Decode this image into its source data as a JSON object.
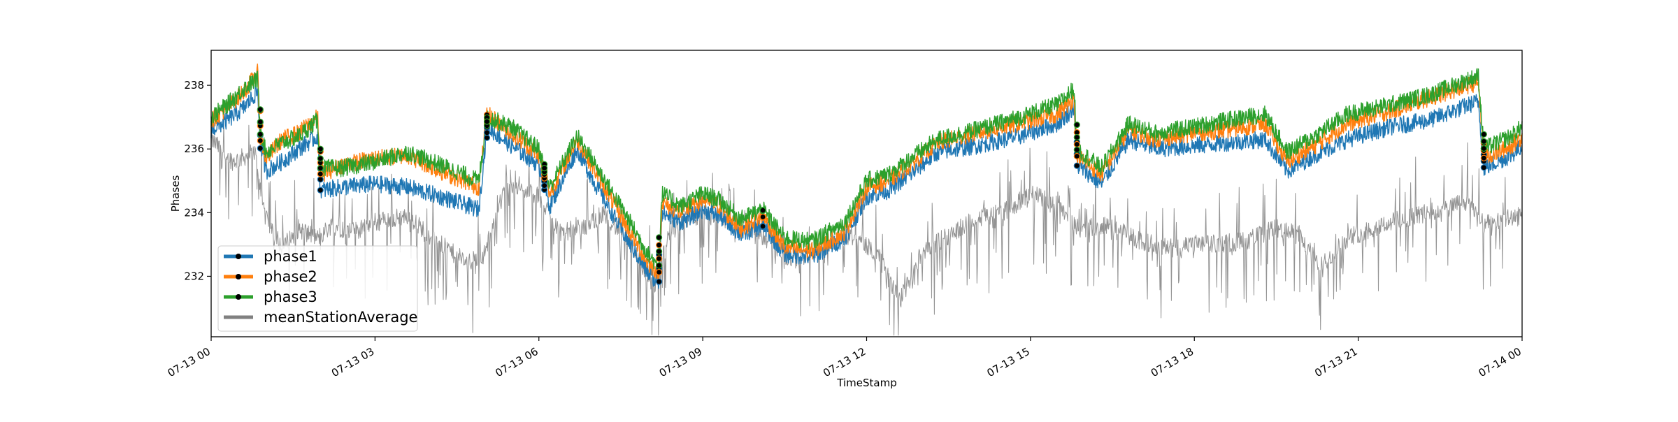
{
  "chart_data": {
    "type": "line",
    "title": "",
    "xlabel": "TimeStamp",
    "ylabel": "Phases",
    "x_range_hours": [
      0,
      24
    ],
    "ylim": [
      230.1,
      239.1
    ],
    "grid": false,
    "legend_position": "lower-left",
    "x_ticks": [
      {
        "hour": 0,
        "label": "07-13 00"
      },
      {
        "hour": 3,
        "label": "07-13 03"
      },
      {
        "hour": 6,
        "label": "07-13 06"
      },
      {
        "hour": 9,
        "label": "07-13 09"
      },
      {
        "hour": 12,
        "label": "07-13 12"
      },
      {
        "hour": 15,
        "label": "07-13 15"
      },
      {
        "hour": 18,
        "label": "07-13 18"
      },
      {
        "hour": 21,
        "label": "07-13 21"
      },
      {
        "hour": 24,
        "label": "07-14 00"
      }
    ],
    "y_ticks": [
      {
        "value": 232,
        "label": "232"
      },
      {
        "value": 234,
        "label": "234"
      },
      {
        "value": 236,
        "label": "236"
      },
      {
        "value": 238,
        "label": "238"
      }
    ],
    "series": [
      {
        "name": "phase1",
        "color": "#1f77b4",
        "marker": "dot",
        "points": [
          [
            0,
            236.6
          ],
          [
            0.3,
            236.9
          ],
          [
            0.6,
            237.3
          ],
          [
            0.85,
            237.8
          ],
          [
            0.9,
            236.2
          ],
          [
            1.0,
            235.3
          ],
          [
            1.3,
            235.6
          ],
          [
            1.6,
            236.0
          ],
          [
            1.95,
            236.4
          ],
          [
            2.0,
            234.7
          ],
          [
            2.4,
            234.8
          ],
          [
            3.0,
            234.9
          ],
          [
            3.6,
            234.8
          ],
          [
            4.2,
            234.5
          ],
          [
            4.9,
            234.1
          ],
          [
            5.05,
            236.7
          ],
          [
            5.5,
            236.1
          ],
          [
            6.0,
            235.5
          ],
          [
            6.2,
            234.2
          ],
          [
            6.7,
            236.0
          ],
          [
            7.0,
            235.0
          ],
          [
            7.6,
            233.2
          ],
          [
            8.0,
            232.1
          ],
          [
            8.2,
            231.8
          ],
          [
            8.25,
            234.0
          ],
          [
            8.6,
            233.7
          ],
          [
            9.0,
            234.1
          ],
          [
            9.3,
            233.9
          ],
          [
            9.7,
            233.3
          ],
          [
            10.1,
            233.6
          ],
          [
            10.5,
            232.7
          ],
          [
            11.0,
            232.6
          ],
          [
            11.6,
            233.2
          ],
          [
            12.0,
            234.5
          ],
          [
            12.4,
            234.7
          ],
          [
            12.8,
            235.2
          ],
          [
            13.3,
            235.9
          ],
          [
            14.0,
            236.1
          ],
          [
            14.8,
            236.4
          ],
          [
            15.5,
            236.8
          ],
          [
            15.8,
            237.3
          ],
          [
            15.85,
            235.5
          ],
          [
            16.3,
            234.9
          ],
          [
            16.8,
            236.3
          ],
          [
            17.3,
            236.0
          ],
          [
            18.0,
            236.1
          ],
          [
            18.6,
            236.2
          ],
          [
            19.3,
            236.3
          ],
          [
            19.7,
            235.3
          ],
          [
            20.2,
            235.8
          ],
          [
            20.8,
            236.3
          ],
          [
            21.6,
            236.7
          ],
          [
            22.3,
            236.9
          ],
          [
            23.2,
            237.5
          ],
          [
            23.3,
            235.4
          ],
          [
            23.8,
            235.8
          ],
          [
            24.0,
            236.1
          ]
        ]
      },
      {
        "name": "phase2",
        "color": "#ff7f0e",
        "marker": "dot",
        "points": [
          [
            0,
            236.9
          ],
          [
            0.3,
            237.3
          ],
          [
            0.6,
            237.8
          ],
          [
            0.85,
            238.4
          ],
          [
            0.9,
            236.4
          ],
          [
            1.0,
            235.7
          ],
          [
            1.3,
            236.3
          ],
          [
            1.6,
            236.5
          ],
          [
            1.95,
            237.0
          ],
          [
            2.0,
            235.2
          ],
          [
            2.4,
            235.5
          ],
          [
            3.0,
            235.7
          ],
          [
            3.6,
            235.8
          ],
          [
            4.2,
            235.3
          ],
          [
            4.9,
            234.8
          ],
          [
            5.05,
            237.1
          ],
          [
            5.5,
            236.5
          ],
          [
            6.0,
            235.8
          ],
          [
            6.2,
            234.6
          ],
          [
            6.7,
            236.3
          ],
          [
            7.0,
            235.4
          ],
          [
            7.6,
            233.6
          ],
          [
            8.0,
            232.4
          ],
          [
            8.2,
            232.1
          ],
          [
            8.25,
            234.3
          ],
          [
            8.6,
            234.0
          ],
          [
            9.0,
            234.4
          ],
          [
            9.3,
            234.2
          ],
          [
            9.7,
            233.5
          ],
          [
            10.1,
            233.9
          ],
          [
            10.5,
            232.9
          ],
          [
            11.0,
            232.8
          ],
          [
            11.6,
            233.4
          ],
          [
            12.0,
            234.8
          ],
          [
            12.4,
            235.0
          ],
          [
            12.8,
            235.5
          ],
          [
            13.3,
            236.2
          ],
          [
            14.0,
            236.5
          ],
          [
            14.8,
            236.8
          ],
          [
            15.5,
            237.1
          ],
          [
            15.8,
            237.6
          ],
          [
            15.85,
            235.8
          ],
          [
            16.3,
            235.2
          ],
          [
            16.8,
            236.6
          ],
          [
            17.3,
            236.3
          ],
          [
            18.0,
            236.5
          ],
          [
            18.6,
            236.6
          ],
          [
            19.3,
            236.8
          ],
          [
            19.7,
            235.6
          ],
          [
            20.2,
            236.1
          ],
          [
            20.8,
            236.8
          ],
          [
            21.6,
            237.2
          ],
          [
            22.3,
            237.6
          ],
          [
            23.2,
            238.1
          ],
          [
            23.3,
            235.7
          ],
          [
            23.8,
            236.1
          ],
          [
            24.0,
            236.4
          ]
        ]
      },
      {
        "name": "phase3",
        "color": "#2ca02c",
        "marker": "dot",
        "points": [
          [
            0,
            237.0
          ],
          [
            0.3,
            237.4
          ],
          [
            0.6,
            237.9
          ],
          [
            0.85,
            238.2
          ],
          [
            0.9,
            236.6
          ],
          [
            1.0,
            235.9
          ],
          [
            1.3,
            236.2
          ],
          [
            1.6,
            236.4
          ],
          [
            1.95,
            236.9
          ],
          [
            2.0,
            235.4
          ],
          [
            2.4,
            235.4
          ],
          [
            3.0,
            235.6
          ],
          [
            3.6,
            235.9
          ],
          [
            4.2,
            235.5
          ],
          [
            4.9,
            235.0
          ],
          [
            5.05,
            237.0
          ],
          [
            5.5,
            236.7
          ],
          [
            6.0,
            236.0
          ],
          [
            6.2,
            234.8
          ],
          [
            6.7,
            236.4
          ],
          [
            7.0,
            235.6
          ],
          [
            7.6,
            233.9
          ],
          [
            8.0,
            232.7
          ],
          [
            8.2,
            232.3
          ],
          [
            8.25,
            234.6
          ],
          [
            8.6,
            234.2
          ],
          [
            9.0,
            234.6
          ],
          [
            9.3,
            234.4
          ],
          [
            9.7,
            233.8
          ],
          [
            10.1,
            234.1
          ],
          [
            10.5,
            233.2
          ],
          [
            11.0,
            233.1
          ],
          [
            11.6,
            233.7
          ],
          [
            12.0,
            235.0
          ],
          [
            12.4,
            235.2
          ],
          [
            12.8,
            235.7
          ],
          [
            13.3,
            236.3
          ],
          [
            14.0,
            236.6
          ],
          [
            14.8,
            237.0
          ],
          [
            15.5,
            237.4
          ],
          [
            15.8,
            237.9
          ],
          [
            15.85,
            236.0
          ],
          [
            16.3,
            235.4
          ],
          [
            16.8,
            236.8
          ],
          [
            17.3,
            236.5
          ],
          [
            18.0,
            236.7
          ],
          [
            18.6,
            236.9
          ],
          [
            19.3,
            237.1
          ],
          [
            19.7,
            235.9
          ],
          [
            20.2,
            236.4
          ],
          [
            20.8,
            237.1
          ],
          [
            21.6,
            237.4
          ],
          [
            22.3,
            237.7
          ],
          [
            23.2,
            238.3
          ],
          [
            23.3,
            236.0
          ],
          [
            23.8,
            236.4
          ],
          [
            24.0,
            236.7
          ]
        ]
      },
      {
        "name": "meanStationAverage",
        "color": "#808080",
        "marker": "none",
        "points": [
          [
            0,
            236.3
          ],
          [
            0.4,
            235.6
          ],
          [
            0.8,
            235.9
          ],
          [
            1.0,
            233.8
          ],
          [
            1.3,
            232.9
          ],
          [
            1.6,
            233.5
          ],
          [
            1.95,
            233.2
          ],
          [
            2.2,
            233.6
          ],
          [
            2.6,
            233.4
          ],
          [
            3.0,
            233.7
          ],
          [
            3.6,
            233.9
          ],
          [
            4.2,
            233.0
          ],
          [
            4.7,
            232.4
          ],
          [
            5.0,
            232.7
          ],
          [
            5.4,
            234.9
          ],
          [
            6.0,
            234.5
          ],
          [
            6.4,
            233.4
          ],
          [
            6.8,
            233.5
          ],
          [
            7.2,
            234.0
          ],
          [
            7.8,
            232.7
          ],
          [
            8.1,
            231.6
          ],
          [
            8.4,
            233.5
          ],
          [
            9.0,
            234.0
          ],
          [
            9.5,
            233.7
          ],
          [
            10.0,
            233.4
          ],
          [
            10.6,
            232.5
          ],
          [
            11.2,
            232.9
          ],
          [
            11.7,
            233.3
          ],
          [
            12.2,
            232.7
          ],
          [
            12.6,
            231.2
          ],
          [
            13.0,
            232.7
          ],
          [
            13.5,
            233.3
          ],
          [
            14.0,
            233.8
          ],
          [
            14.6,
            234.1
          ],
          [
            15.0,
            234.6
          ],
          [
            15.5,
            234.3
          ],
          [
            15.9,
            233.5
          ],
          [
            16.4,
            233.6
          ],
          [
            17.0,
            233.1
          ],
          [
            17.6,
            232.9
          ],
          [
            18.3,
            233.0
          ],
          [
            18.9,
            233.1
          ],
          [
            19.5,
            233.5
          ],
          [
            19.9,
            233.3
          ],
          [
            20.3,
            232.3
          ],
          [
            20.8,
            233.2
          ],
          [
            21.4,
            233.6
          ],
          [
            22.0,
            233.9
          ],
          [
            22.6,
            234.1
          ],
          [
            23.0,
            234.4
          ],
          [
            23.3,
            233.6
          ],
          [
            23.7,
            233.8
          ],
          [
            24.0,
            233.9
          ]
        ]
      }
    ],
    "dotted_transitions_hours": [
      0.9,
      2.0,
      5.05,
      6.1,
      8.2,
      10.1,
      15.85,
      23.3
    ],
    "legend": [
      {
        "label": "phase1",
        "color": "#1f77b4",
        "marker": "dot"
      },
      {
        "label": "phase2",
        "color": "#ff7f0e",
        "marker": "dot"
      },
      {
        "label": "phase3",
        "color": "#2ca02c",
        "marker": "dot"
      },
      {
        "label": "meanStationAverage",
        "color": "#808080",
        "marker": "none"
      }
    ]
  }
}
